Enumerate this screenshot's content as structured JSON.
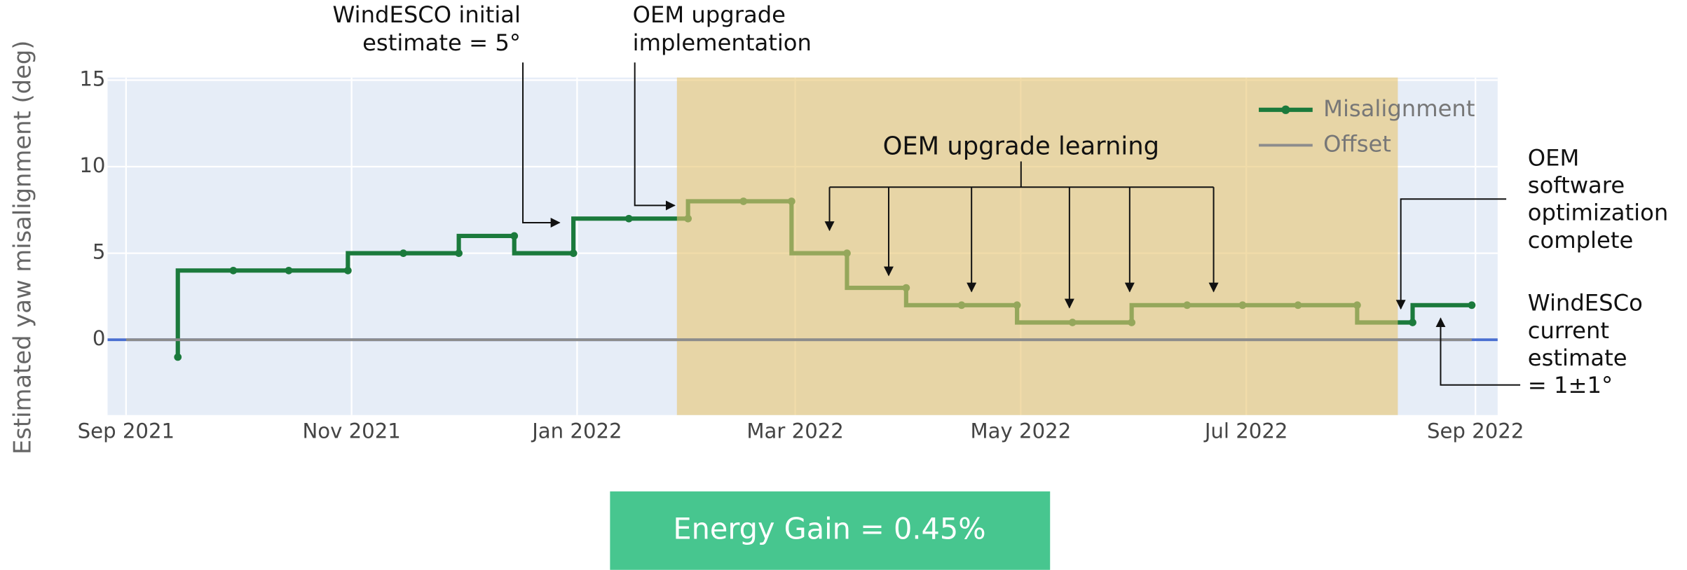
{
  "chart_data": {
    "type": "line",
    "step": "vh",
    "ylabel": "Estimated yaw misalignment (deg)",
    "xlim": [
      "2021-08-27",
      "2022-09-07"
    ],
    "xticks": [
      {
        "value": "2021-09-01",
        "label": "Sep 2021"
      },
      {
        "value": "2021-11-01",
        "label": "Nov 2021"
      },
      {
        "value": "2022-01-01",
        "label": "Jan 2022"
      },
      {
        "value": "2022-03-01",
        "label": "Mar 2022"
      },
      {
        "value": "2022-05-01",
        "label": "May 2022"
      },
      {
        "value": "2022-07-01",
        "label": "Jul 2022"
      },
      {
        "value": "2022-09-01",
        "label": "Sep 2022"
      }
    ],
    "ylim": [
      -4.35,
      15.15
    ],
    "yticks": [
      0,
      5,
      10,
      15
    ],
    "grid": true,
    "zeroline_color": "#4a6fd1",
    "legend": "top right",
    "shaded_region": {
      "x": [
        "2022-01-28",
        "2022-08-11"
      ],
      "color": "#e8c56f"
    },
    "series": [
      {
        "name": "Misalignment",
        "color": "#1b7a3c",
        "x": [
          "2021-09-15",
          "2021-09-30",
          "2021-10-15",
          "2021-10-31",
          "2021-11-15",
          "2021-11-30",
          "2021-12-15",
          "2021-12-31",
          "2022-01-15",
          "2022-01-31",
          "2022-02-15",
          "2022-02-28",
          "2022-03-15",
          "2022-03-31",
          "2022-04-15",
          "2022-04-30",
          "2022-05-15",
          "2022-05-31",
          "2022-06-15",
          "2022-06-30",
          "2022-07-15",
          "2022-07-31",
          "2022-08-15",
          "2022-08-31"
        ],
        "values": [
          -1,
          4,
          4,
          4,
          5,
          5,
          6,
          5,
          7,
          7,
          8,
          8,
          5,
          3,
          2,
          2,
          1,
          1,
          2,
          2,
          2,
          2,
          1,
          2
        ]
      },
      {
        "name": "Offset",
        "color": "#8c8c8c",
        "x": [
          "2021-09-01",
          "2022-08-31"
        ],
        "values": [
          0,
          0
        ]
      }
    ],
    "annotations": [
      {
        "lines": [
          "WindESCO initial",
          "estimate = 5°"
        ]
      },
      {
        "lines": [
          "OEM upgrade",
          "implementation"
        ]
      },
      {
        "lines": [
          "OEM upgrade learning"
        ]
      },
      {
        "lines": [
          "OEM",
          "software",
          "optimization",
          "complete"
        ]
      },
      {
        "lines": [
          "WindESCo",
          "current",
          "estimate",
          "= 1±1°"
        ]
      }
    ]
  },
  "energy_gain": "Energy Gain = 0.45%"
}
